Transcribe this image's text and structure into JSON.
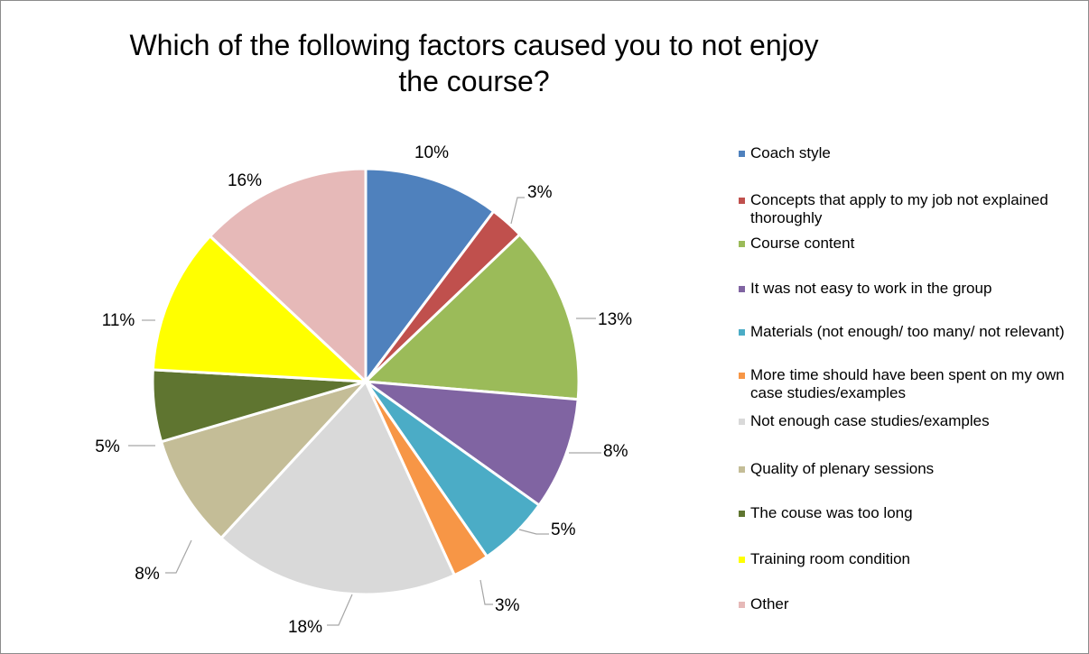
{
  "chart_data": {
    "type": "pie",
    "title": "Which of the following factors caused you to not enjoy the course?",
    "slices": [
      {
        "label": "Coach style",
        "value": 10,
        "display": "10%",
        "color": "#4f81bd"
      },
      {
        "label": "Concepts that apply to my job not explained thoroughly",
        "value": 3,
        "display": "3%",
        "color": "#c0504d"
      },
      {
        "label": "Course content",
        "value": 13,
        "display": "13%",
        "color": "#9bbb59"
      },
      {
        "label": "It was not easy to work in the group",
        "value": 8,
        "display": "8%",
        "color": "#8064a2"
      },
      {
        "label": "Materials (not enough/ too many/ not relevant)",
        "value": 5,
        "display": "5%",
        "color": "#4bacc6"
      },
      {
        "label": "More time should have been spent on my own case studies/examples",
        "value": 3,
        "display": "3%",
        "color": "#f79646"
      },
      {
        "label": "Not enough case studies/examples",
        "value": 18,
        "display": "18%",
        "color": "#d9d9d9"
      },
      {
        "label": "Quality of plenary sessions",
        "value": 8,
        "display": "8%",
        "color": "#c4bd97"
      },
      {
        "label": "The couse was too long",
        "value": 5,
        "display": "5%",
        "color": "#5f7530"
      },
      {
        "label": " Training room condition",
        "value": 11,
        "display": "11%",
        "color": "#ffff00"
      },
      {
        "label": "Other",
        "value": 16,
        "display": "16%",
        "color": "#e6b9b8"
      }
    ],
    "legend_position": "right"
  }
}
